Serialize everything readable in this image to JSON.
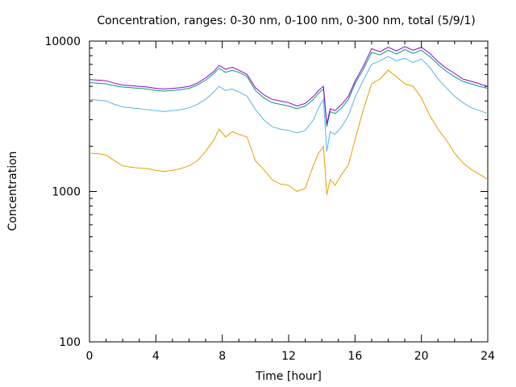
{
  "chart_data": {
    "type": "line",
    "title": "Concentration, ranges: 0-30 nm, 0-100 nm, 0-300 nm, total (5/9/1)",
    "xlabel": "Time [hour]",
    "ylabel": "Concentration",
    "xlim": [
      0,
      24
    ],
    "ylim": [
      100,
      10000
    ],
    "yscale": "log",
    "xticks": [
      0,
      4,
      8,
      12,
      16,
      20,
      24
    ],
    "xtick_labels": [
      "0",
      "4",
      "8",
      "12",
      "16",
      "20",
      "24"
    ],
    "yticks": [
      100,
      1000,
      10000
    ],
    "ytick_labels": [
      "100",
      "1000",
      "10000"
    ],
    "grid": false,
    "legend": "none",
    "series": [
      {
        "color": "#e69f00",
        "x": [
          0,
          0.5,
          1,
          1.5,
          2,
          2.5,
          3,
          3.5,
          4,
          4.5,
          5,
          5.5,
          6,
          6.5,
          7,
          7.5,
          7.8,
          8.2,
          8.6,
          9,
          9.5,
          10,
          10.5,
          11,
          11.5,
          12,
          12.5,
          13,
          13.5,
          13.8,
          14.1,
          14.3,
          14.5,
          14.8,
          15.2,
          15.6,
          16,
          16.5,
          17,
          17.5,
          18,
          18.5,
          19,
          19.5,
          20,
          20.5,
          21,
          21.5,
          22,
          22.5,
          23,
          23.5,
          24
        ],
        "y": [
          1800,
          1780,
          1750,
          1600,
          1480,
          1450,
          1430,
          1420,
          1380,
          1360,
          1380,
          1420,
          1480,
          1600,
          1850,
          2200,
          2600,
          2300,
          2500,
          2400,
          2300,
          1600,
          1400,
          1200,
          1120,
          1100,
          1000,
          1050,
          1500,
          1800,
          2000,
          950,
          1200,
          1100,
          1300,
          1500,
          2200,
          3500,
          5200,
          5600,
          6400,
          5800,
          5200,
          5000,
          4200,
          3200,
          2600,
          2200,
          1800,
          1550,
          1400,
          1300,
          1200
        ]
      },
      {
        "color": "#56b4e9",
        "x": [
          0,
          0.5,
          1,
          1.5,
          2,
          2.5,
          3,
          3.5,
          4,
          4.5,
          5,
          5.5,
          6,
          6.5,
          7,
          7.5,
          7.8,
          8.2,
          8.6,
          9,
          9.5,
          10,
          10.5,
          11,
          11.5,
          12,
          12.5,
          13,
          13.5,
          13.8,
          14.1,
          14.3,
          14.5,
          14.8,
          15.2,
          15.6,
          16,
          16.5,
          17,
          17.5,
          18,
          18.5,
          19,
          19.5,
          20,
          20.5,
          21,
          21.5,
          22,
          22.5,
          23,
          23.5,
          24
        ],
        "y": [
          4100,
          4050,
          4000,
          3800,
          3650,
          3600,
          3550,
          3500,
          3450,
          3400,
          3450,
          3500,
          3600,
          3800,
          4100,
          4600,
          5000,
          4700,
          4800,
          4600,
          4300,
          3500,
          3000,
          2700,
          2600,
          2550,
          2450,
          2550,
          3000,
          3600,
          4100,
          1850,
          2500,
          2400,
          2700,
          3200,
          4200,
          5500,
          7000,
          7400,
          7900,
          7400,
          7700,
          7200,
          7600,
          6700,
          5600,
          4900,
          4300,
          3900,
          3600,
          3450,
          3300
        ]
      },
      {
        "color": "#009e73",
        "x": [
          0,
          0.5,
          1,
          1.5,
          2,
          2.5,
          3,
          3.5,
          4,
          4.5,
          5,
          5.5,
          6,
          6.5,
          7,
          7.5,
          7.8,
          8.2,
          8.6,
          9,
          9.5,
          10,
          10.5,
          11,
          11.5,
          12,
          12.5,
          13,
          13.5,
          13.8,
          14.1,
          14.3,
          14.5,
          14.8,
          15.2,
          15.6,
          16,
          16.5,
          17,
          17.5,
          18,
          18.5,
          19,
          19.5,
          20,
          20.5,
          21,
          21.5,
          22,
          22.5,
          23,
          23.5,
          24
        ],
        "y": [
          5300,
          5250,
          5200,
          5050,
          4950,
          4900,
          4850,
          4800,
          4700,
          4650,
          4700,
          4750,
          4850,
          5100,
          5500,
          6100,
          6600,
          6200,
          6400,
          6200,
          5800,
          4700,
          4200,
          3900,
          3800,
          3700,
          3550,
          3700,
          4100,
          4500,
          4800,
          2700,
          3400,
          3300,
          3600,
          4100,
          5200,
          6500,
          8400,
          8100,
          8700,
          8200,
          8800,
          8300,
          8700,
          7900,
          7000,
          6300,
          5800,
          5400,
          5200,
          5000,
          4850
        ]
      },
      {
        "color": "#9400d3",
        "x": [
          0,
          0.5,
          1,
          1.5,
          2,
          2.5,
          3,
          3.5,
          4,
          4.5,
          5,
          5.5,
          6,
          6.5,
          7,
          7.5,
          7.8,
          8.2,
          8.6,
          9,
          9.5,
          10,
          10.5,
          11,
          11.5,
          12,
          12.5,
          13,
          13.5,
          13.8,
          14.1,
          14.3,
          14.5,
          14.8,
          15.2,
          15.6,
          16,
          16.5,
          17,
          17.5,
          18,
          18.5,
          19,
          19.5,
          20,
          20.5,
          21,
          21.5,
          22,
          22.5,
          23,
          23.5,
          24
        ],
        "y": [
          5550,
          5500,
          5450,
          5250,
          5100,
          5050,
          5000,
          4950,
          4850,
          4800,
          4850,
          4900,
          5000,
          5250,
          5700,
          6300,
          6900,
          6500,
          6700,
          6400,
          6000,
          4900,
          4400,
          4100,
          4000,
          3900,
          3700,
          3850,
          4300,
          4700,
          5000,
          2800,
          3550,
          3450,
          3800,
          4300,
          5400,
          6800,
          8900,
          8500,
          9100,
          8600,
          9200,
          8700,
          9100,
          8300,
          7300,
          6600,
          6100,
          5600,
          5400,
          5200,
          5000
        ]
      }
    ]
  }
}
